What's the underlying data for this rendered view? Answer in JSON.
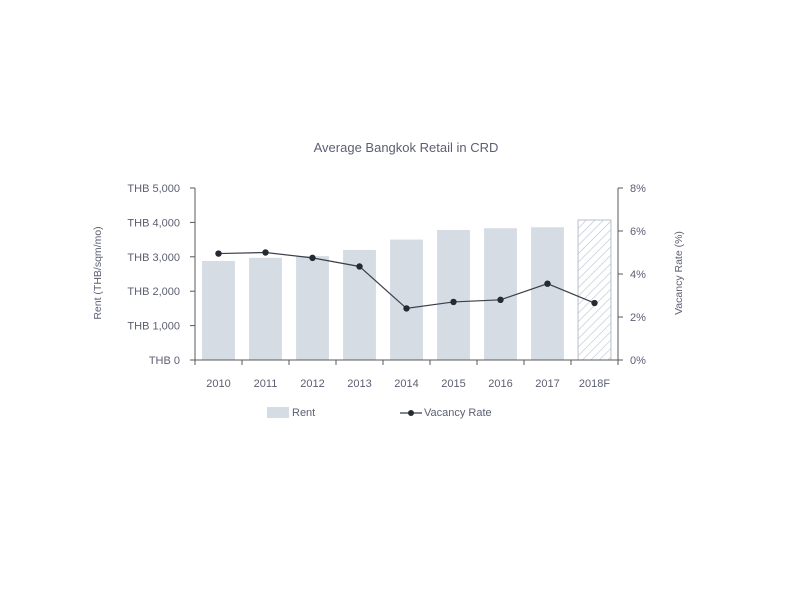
{
  "chart_data": {
    "type": "bar",
    "title": "Average Bangkok Retail in CRD",
    "categories": [
      "2010",
      "2011",
      "2012",
      "2013",
      "2014",
      "2015",
      "2016",
      "2017",
      "2018F"
    ],
    "ylabel_left": "Rent (THB/sqm/mo)",
    "ylabel_right": "Vacancy Rate (%)",
    "ylim_left": [
      0,
      5000
    ],
    "ylim_right": [
      0,
      8
    ],
    "yticks_left": [
      "THB 0",
      "THB 1,000",
      "THB 2,000",
      "THB 3,000",
      "THB 4,000",
      "THB 5,000"
    ],
    "yticks_right": [
      "0%",
      "2%",
      "4%",
      "6%",
      "8%"
    ],
    "grid": false,
    "legend_position": "bottom",
    "series": [
      {
        "name": "Rent",
        "type": "bar",
        "axis": "left",
        "values": [
          2880,
          2970,
          3020,
          3200,
          3500,
          3780,
          3830,
          3860,
          4070
        ],
        "forecast_index": 8,
        "color": "#d6dce4"
      },
      {
        "name": "Vacancy Rate",
        "type": "line",
        "axis": "right",
        "values": [
          4.95,
          5.0,
          4.75,
          4.35,
          2.4,
          2.7,
          2.8,
          3.55,
          2.65
        ],
        "color": "#3a3f4b"
      }
    ]
  },
  "colors": {
    "text": "#5c5f73",
    "axis": "#595959",
    "bar": "#d6dce4",
    "bar_forecast_hatch": "#b8c0cc",
    "line": "#3a3f4b",
    "marker": "#262a33"
  }
}
